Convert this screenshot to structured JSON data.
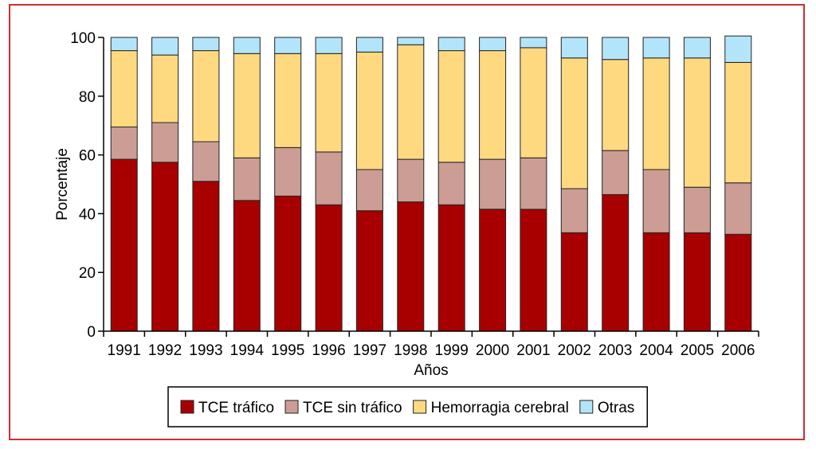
{
  "chart_data": {
    "type": "bar",
    "stacked": true,
    "categories": [
      "1991",
      "1992",
      "1993",
      "1994",
      "1995",
      "1996",
      "1997",
      "1998",
      "1999",
      "2000",
      "2001",
      "2002",
      "2003",
      "2004",
      "2005",
      "2006"
    ],
    "series": [
      {
        "name": "TCE tráfico",
        "color": "#a80000",
        "values": [
          58.5,
          57.5,
          51,
          44.5,
          46,
          43,
          41,
          44,
          43,
          41.5,
          41.5,
          33.5,
          46.5,
          33.5,
          33.5,
          33
        ]
      },
      {
        "name": "TCE sin tráfico",
        "color": "#cc9d94",
        "values": [
          11,
          13.5,
          13.5,
          14.5,
          16.5,
          18,
          14,
          14.5,
          14.5,
          17,
          17.5,
          15,
          15,
          21.5,
          15.5,
          17.5
        ]
      },
      {
        "name": "Hemorragia cerebral",
        "color": "#ffd980",
        "values": [
          26,
          23,
          31,
          35.5,
          32,
          33.5,
          40,
          39,
          38,
          37,
          37.5,
          44.5,
          31,
          38,
          44,
          41
        ]
      },
      {
        "name": "Otras",
        "color": "#b3e5fa",
        "values": [
          4.5,
          6,
          4.5,
          5.5,
          5.5,
          5.5,
          5,
          2.5,
          4.5,
          4.5,
          3.5,
          7,
          7.5,
          7,
          7,
          9
        ]
      }
    ],
    "yticks": [
      0,
      20,
      40,
      60,
      80,
      100
    ],
    "ylim": [
      0,
      100
    ],
    "ylabel": "Porcentaje",
    "xlabel": "Años",
    "legend_position": "bottom",
    "grid": false
  }
}
